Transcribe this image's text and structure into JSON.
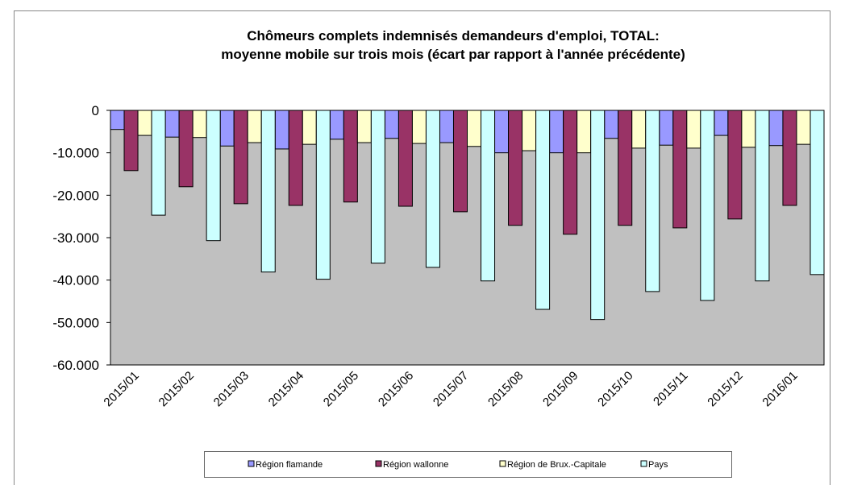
{
  "chart_data": {
    "type": "bar",
    "title": "Chômeurs complets indemnisés demandeurs d'emploi, TOTAL:",
    "subtitle": "moyenne mobile sur trois mois (écart par rapport à l'année précédente)",
    "categories": [
      "2015/01",
      "2015/02",
      "2015/03",
      "2015/04",
      "2015/05",
      "2015/06",
      "2015/07",
      "2015/08",
      "2015/09",
      "2015/10",
      "2015/11",
      "2015/12",
      "2016/01"
    ],
    "series": [
      {
        "name": "Région flamande",
        "color": "#9999ff",
        "values": [
          -4500,
          -6300,
          -8400,
          -9100,
          -6800,
          -6600,
          -7600,
          -10000,
          -10000,
          -6600,
          -8200,
          -5900,
          -8300
        ]
      },
      {
        "name": "Région wallonne",
        "color": "#993366",
        "values": [
          -14200,
          -18000,
          -22000,
          -22400,
          -21600,
          -22600,
          -23900,
          -27100,
          -29200,
          -27100,
          -27700,
          -25600,
          -22400
        ]
      },
      {
        "name": "Région de Brux.-Capitale",
        "color": "#ffffcc",
        "values": [
          -5900,
          -6400,
          -7600,
          -8000,
          -7600,
          -7800,
          -8500,
          -9500,
          -10000,
          -8900,
          -8900,
          -8700,
          -8000
        ]
      },
      {
        "name": "Pays",
        "color": "#ccffff",
        "values": [
          -24700,
          -30700,
          -38100,
          -39800,
          -36000,
          -37000,
          -40200,
          -46900,
          -49300,
          -42700,
          -44800,
          -40200,
          -38700
        ]
      }
    ],
    "ylim": [
      -60000,
      0
    ],
    "yticks": [
      {
        "value": -60000,
        "label": "-60.000"
      },
      {
        "value": -50000,
        "label": "-50.000"
      },
      {
        "value": -40000,
        "label": "-40.000"
      },
      {
        "value": -30000,
        "label": "-30.000"
      },
      {
        "value": -20000,
        "label": "-20.000"
      },
      {
        "value": -10000,
        "label": "-10.000"
      },
      0
    ],
    "plot_background": "#c0c0c0"
  }
}
